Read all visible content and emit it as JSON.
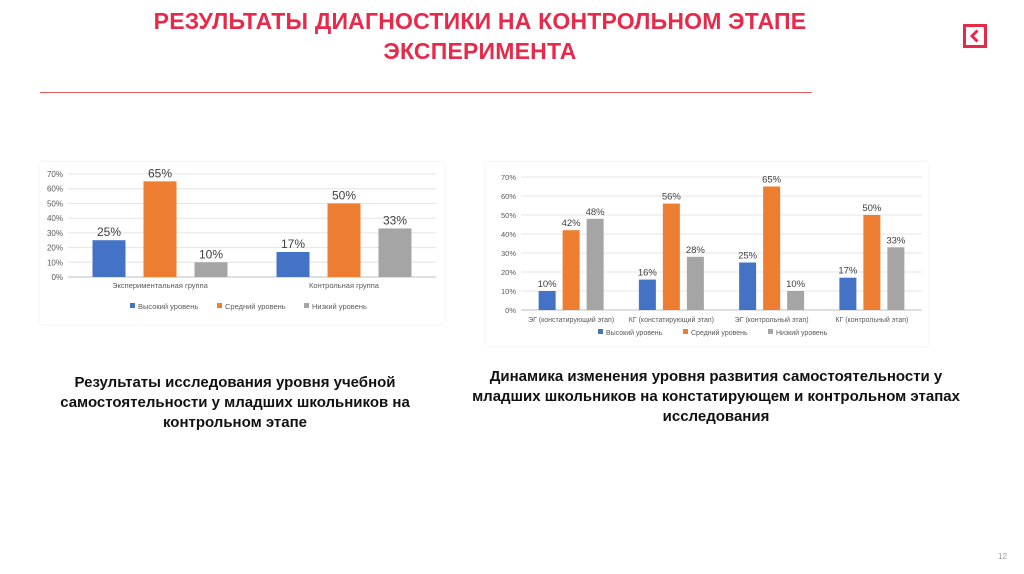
{
  "slide": {
    "title": "РЕЗУЛЬТАТЫ ДИАГНОСТИКИ НА КОНТРОЛЬНОМ ЭТАПЕ ЭКСПЕРИМЕНТА",
    "accent_color": "#e8294a",
    "back_icon": "back-arrow-icon",
    "page_number": "12"
  },
  "captions": {
    "left": "Результаты исследования уровня учебной самостоятельности у младших школьников на контрольном этапе",
    "right": "Динамика изменения уровня развития самостоятельности у младших школьников на констатирующем и контрольном этапах исследования"
  },
  "chart_data": [
    {
      "type": "bar",
      "categories": [
        "Экспериментальная группа",
        "Контрольная группа"
      ],
      "series": [
        {
          "name": "Высокий уровень",
          "values": [
            25,
            17
          ],
          "color": "#4472c4"
        },
        {
          "name": "Средний уровень",
          "values": [
            65,
            50
          ],
          "color": "#ed7d31"
        },
        {
          "name": "Низкий уровень",
          "values": [
            10,
            33
          ],
          "color": "#a5a5a5"
        }
      ],
      "yticks": [
        "0%",
        "10%",
        "20%",
        "30%",
        "40%",
        "50%",
        "60%",
        "70%"
      ],
      "ylim": [
        0,
        70
      ],
      "value_suffix": "%",
      "grid": true,
      "legend_position": "bottom"
    },
    {
      "type": "bar",
      "categories": [
        "ЭГ (констатирующий этап)",
        "КГ (констатирующий этап)",
        "ЭГ (контрольный этап)",
        "КГ (контрольный этап)"
      ],
      "series": [
        {
          "name": "Высокий уровень",
          "values": [
            10,
            16,
            25,
            17
          ],
          "color": "#4472c4"
        },
        {
          "name": "Средний уровень",
          "values": [
            42,
            56,
            65,
            50
          ],
          "color": "#ed7d31"
        },
        {
          "name": "Низкий уровень",
          "values": [
            48,
            28,
            10,
            33
          ],
          "color": "#a5a5a5"
        }
      ],
      "yticks": [
        "0%",
        "10%",
        "20%",
        "30%",
        "40%",
        "50%",
        "60%",
        "70%"
      ],
      "ylim": [
        0,
        70
      ],
      "value_suffix": "%",
      "grid": true,
      "legend_position": "bottom"
    }
  ]
}
